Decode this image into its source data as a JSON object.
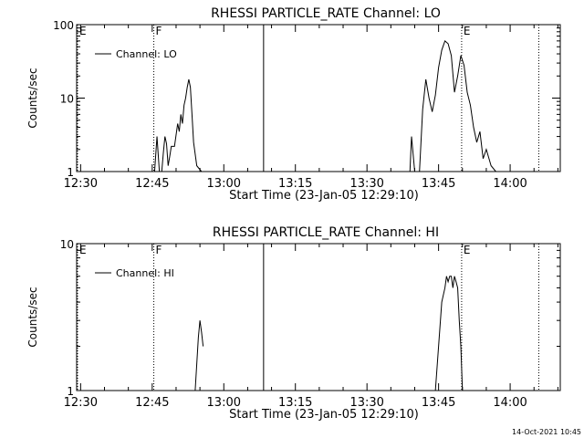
{
  "chart_data": [
    {
      "type": "line",
      "title": "RHESSI PARTICLE_RATE Channel: LO",
      "xlabel": "Start Time (23-Jan-05 12:29:10)",
      "ylabel": "Counts/sec",
      "y_scale": "log",
      "ylim": [
        1,
        100
      ],
      "y_ticks": [
        "1",
        "10",
        "100"
      ],
      "xlim": [
        "12:29:10",
        "14:10:30"
      ],
      "x_ticks": [
        "12:30",
        "12:45",
        "13:00",
        "13:15",
        "13:30",
        "13:45",
        "14:00"
      ],
      "legend": "top-left",
      "grid": false,
      "series": [
        {
          "name": "Channel: LO",
          "x": [
            "12:45:30",
            "12:46:00",
            "12:46:30",
            "12:47:00",
            "12:47:20",
            "12:47:40",
            "12:48:00",
            "12:48:20",
            "12:48:40",
            "12:49:00",
            "12:49:40",
            "12:50:20",
            "12:50:40",
            "12:51:00",
            "12:51:20",
            "12:51:40",
            "12:52:00",
            "12:52:20",
            "12:52:40",
            "12:53:00",
            "12:53:20",
            "12:53:40",
            "12:54:20",
            "12:55:20",
            "13:39:00",
            "13:39:20",
            "13:40:00",
            "13:41:00",
            "13:41:40",
            "13:42:20",
            "13:43:00",
            "13:43:40",
            "13:44:20",
            "13:45:00",
            "13:45:40",
            "13:46:20",
            "13:47:00",
            "13:47:40",
            "13:48:20",
            "13:49:00",
            "13:49:40",
            "13:50:20",
            "13:51:00",
            "13:51:40",
            "13:52:20",
            "13:53:00",
            "13:53:40",
            "13:54:20",
            "13:55:00",
            "13:56:00",
            "13:57:00"
          ],
          "y": [
            1,
            3,
            1,
            1,
            1.8,
            3,
            2.4,
            1.2,
            1.6,
            2.2,
            2.2,
            4.5,
            3.5,
            6,
            4.5,
            8,
            10,
            14,
            18,
            14,
            6,
            2.5,
            1.2,
            1,
            1,
            3,
            1,
            1,
            7,
            18,
            10,
            6.5,
            11,
            26,
            45,
            60,
            55,
            38,
            12,
            20,
            38,
            28,
            12,
            8,
            4,
            2.5,
            3.5,
            1.5,
            2,
            1.2,
            1
          ]
        }
      ],
      "markers": [
        {
          "label": "E",
          "time": "12:29:10",
          "style": "dotted"
        },
        {
          "label": "F",
          "time": "12:45:20",
          "style": "dotted"
        },
        {
          "label": "",
          "time": "13:08:20",
          "style": "solid"
        },
        {
          "label": "E",
          "time": "13:49:50",
          "style": "dotted"
        },
        {
          "label": "",
          "time": "14:06:00",
          "style": "dotted"
        }
      ]
    },
    {
      "type": "line",
      "title": "RHESSI PARTICLE_RATE Channel: HI",
      "xlabel": "Start Time (23-Jan-05 12:29:10)",
      "ylabel": "Counts/sec",
      "y_scale": "log",
      "ylim": [
        1,
        10
      ],
      "y_ticks": [
        "1",
        "10"
      ],
      "xlim": [
        "12:29:10",
        "14:10:30"
      ],
      "x_ticks": [
        "12:30",
        "12:45",
        "13:00",
        "13:15",
        "13:30",
        "13:45",
        "14:00"
      ],
      "legend": "top-left",
      "grid": false,
      "series": [
        {
          "name": "Channel: HI",
          "x": [
            "12:54:00",
            "12:54:40",
            "12:55:00",
            "12:55:20",
            "12:55:40",
            "13:44:20",
            "13:45:00",
            "13:45:40",
            "13:46:20",
            "13:46:40",
            "13:47:00",
            "13:47:20",
            "13:47:40",
            "13:48:00",
            "13:48:20",
            "13:48:40",
            "13:49:00",
            "13:49:20",
            "13:49:40",
            "13:50:00"
          ],
          "y": [
            1,
            2.3,
            3,
            2.5,
            2,
            1,
            2,
            4,
            5,
            6,
            5.5,
            6,
            6,
            5,
            6,
            5.5,
            5,
            3,
            2,
            1
          ]
        }
      ],
      "markers": [
        {
          "label": "E",
          "time": "12:29:10",
          "style": "dotted"
        },
        {
          "label": "F",
          "time": "12:45:20",
          "style": "dotted"
        },
        {
          "label": "",
          "time": "13:08:20",
          "style": "solid"
        },
        {
          "label": "E",
          "time": "13:49:50",
          "style": "dotted"
        },
        {
          "label": "",
          "time": "14:06:00",
          "style": "dotted"
        }
      ]
    }
  ],
  "footer": {
    "timestamp": "14-Oct-2021 10:45"
  }
}
